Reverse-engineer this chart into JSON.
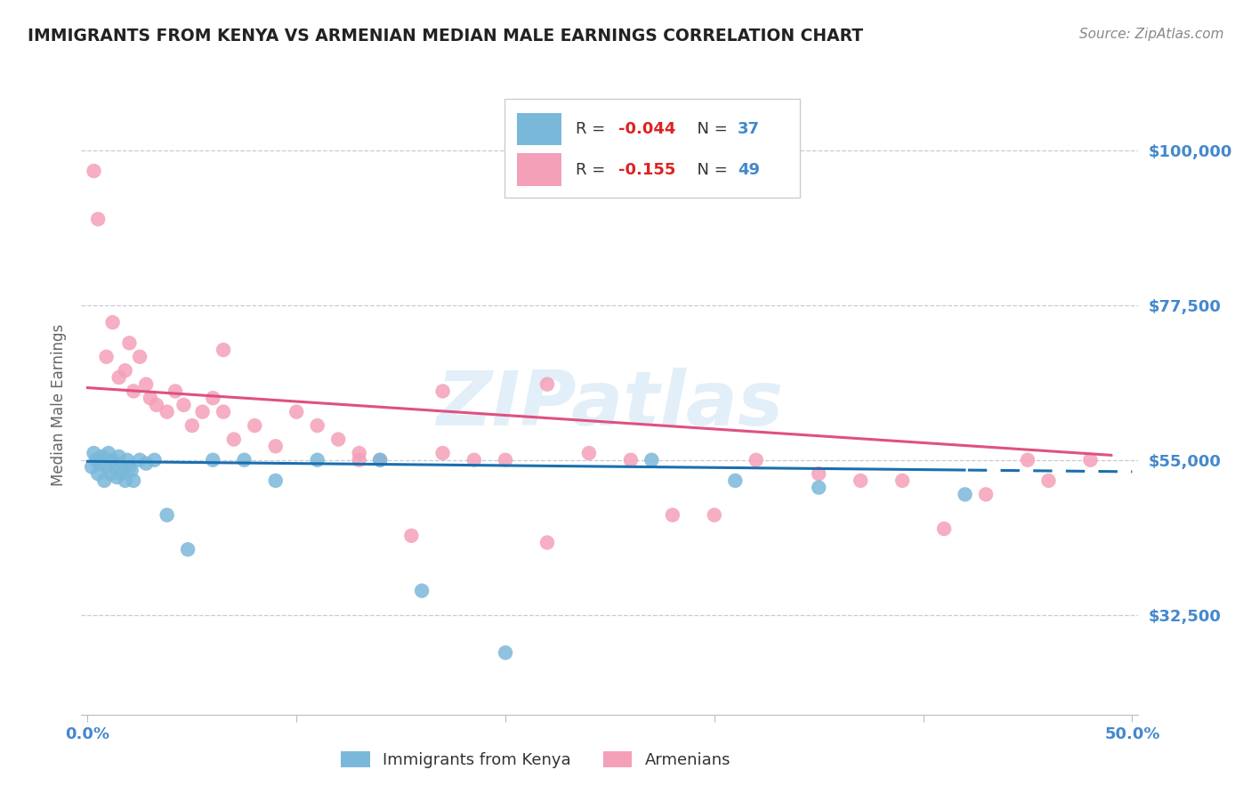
{
  "title": "IMMIGRANTS FROM KENYA VS ARMENIAN MEDIAN MALE EARNINGS CORRELATION CHART",
  "source": "Source: ZipAtlas.com",
  "ylabel": "Median Male Earnings",
  "series1_color": "#7ab8d9",
  "series2_color": "#f4a0b8",
  "line1_color": "#1a6faf",
  "line2_color": "#e05080",
  "watermark": "ZIPatlas",
  "xlim": [
    -0.003,
    0.503
  ],
  "ylim": [
    18000,
    108000
  ],
  "yticks": [
    32500,
    55000,
    77500,
    100000
  ],
  "ytick_labels": [
    "$32,500",
    "$55,000",
    "$77,500",
    "$100,000"
  ],
  "grid_color": "#c8c8d8",
  "tick_label_color": "#4488cc",
  "title_color": "#222222",
  "source_color": "#888888",
  "R1": -0.044,
  "N1": 37,
  "R2": -0.155,
  "N2": 49,
  "kenya_x": [
    0.002,
    0.003,
    0.004,
    0.005,
    0.006,
    0.007,
    0.008,
    0.009,
    0.01,
    0.011,
    0.012,
    0.013,
    0.014,
    0.015,
    0.016,
    0.017,
    0.018,
    0.019,
    0.02,
    0.021,
    0.022,
    0.025,
    0.028,
    0.032,
    0.038,
    0.048,
    0.06,
    0.075,
    0.09,
    0.11,
    0.14,
    0.16,
    0.2,
    0.27,
    0.31,
    0.35,
    0.42
  ],
  "kenya_y": [
    54000,
    56000,
    55000,
    53000,
    54500,
    55500,
    52000,
    54000,
    56000,
    53000,
    55000,
    54500,
    52500,
    55500,
    53000,
    54000,
    52000,
    55000,
    54000,
    53500,
    52000,
    55000,
    54500,
    55000,
    47000,
    42000,
    55000,
    55000,
    52000,
    55000,
    55000,
    36000,
    27000,
    55000,
    52000,
    51000,
    50000
  ],
  "armenian_x": [
    0.003,
    0.005,
    0.009,
    0.012,
    0.015,
    0.018,
    0.02,
    0.022,
    0.025,
    0.028,
    0.03,
    0.033,
    0.038,
    0.042,
    0.046,
    0.05,
    0.055,
    0.06,
    0.065,
    0.07,
    0.08,
    0.09,
    0.1,
    0.11,
    0.12,
    0.13,
    0.14,
    0.155,
    0.17,
    0.185,
    0.2,
    0.22,
    0.24,
    0.26,
    0.28,
    0.3,
    0.32,
    0.35,
    0.37,
    0.39,
    0.41,
    0.43,
    0.45,
    0.46,
    0.48,
    0.22,
    0.17,
    0.13,
    0.065
  ],
  "armenian_y": [
    97000,
    90000,
    70000,
    75000,
    67000,
    68000,
    72000,
    65000,
    70000,
    66000,
    64000,
    63000,
    62000,
    65000,
    63000,
    60000,
    62000,
    64000,
    62000,
    58000,
    60000,
    57000,
    62000,
    60000,
    58000,
    56000,
    55000,
    44000,
    56000,
    55000,
    55000,
    43000,
    56000,
    55000,
    47000,
    47000,
    55000,
    53000,
    52000,
    52000,
    45000,
    50000,
    55000,
    52000,
    55000,
    66000,
    65000,
    55000,
    71000
  ]
}
